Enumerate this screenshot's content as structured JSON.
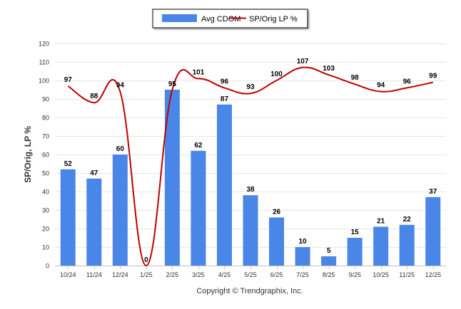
{
  "chart_data": {
    "type": "bar",
    "categories": [
      "10/24",
      "11/24",
      "12/24",
      "1/25",
      "2/25",
      "3/25",
      "4/25",
      "5/25",
      "6/25",
      "7/25",
      "8/25",
      "9/25",
      "10/25",
      "11/25",
      "12/25"
    ],
    "series": [
      {
        "name": "Avg CDOM",
        "type": "bar",
        "values": [
          52,
          47,
          60,
          0,
          95,
          62,
          87,
          38,
          26,
          10,
          5,
          15,
          21,
          22,
          37
        ]
      },
      {
        "name": "SP/Orig LP %",
        "type": "line",
        "values": [
          97,
          88,
          94,
          0,
          95,
          101,
          96,
          93,
          100,
          107,
          103,
          98,
          94,
          96,
          99
        ]
      }
    ],
    "bar_labels": [
      "52",
      "47",
      "60",
      "0",
      "95",
      "62",
      "87",
      "38",
      "26",
      "10",
      "5",
      "15",
      "21",
      "22",
      "37"
    ],
    "line_labels": [
      "97",
      "88",
      "94",
      "",
      "",
      "101",
      "96",
      "93",
      "100",
      "107",
      "103",
      "98",
      "94",
      "96",
      "99"
    ],
    "ylabel": "SP/Orig, LP %",
    "ylim": [
      0,
      120
    ],
    "yticks": [
      "0",
      "10",
      "20",
      "30",
      "40",
      "50",
      "60",
      "70",
      "80",
      "90",
      "100",
      "110",
      "120"
    ],
    "grid": true,
    "legend_position": "top-center",
    "colors": {
      "bar": "#4a86e8",
      "line": "#c00000",
      "grid": "#e6e6e6",
      "axis": "#c0c0c0"
    }
  },
  "footer": {
    "copyright": "Copyright © Trendgraphix, Inc."
  }
}
